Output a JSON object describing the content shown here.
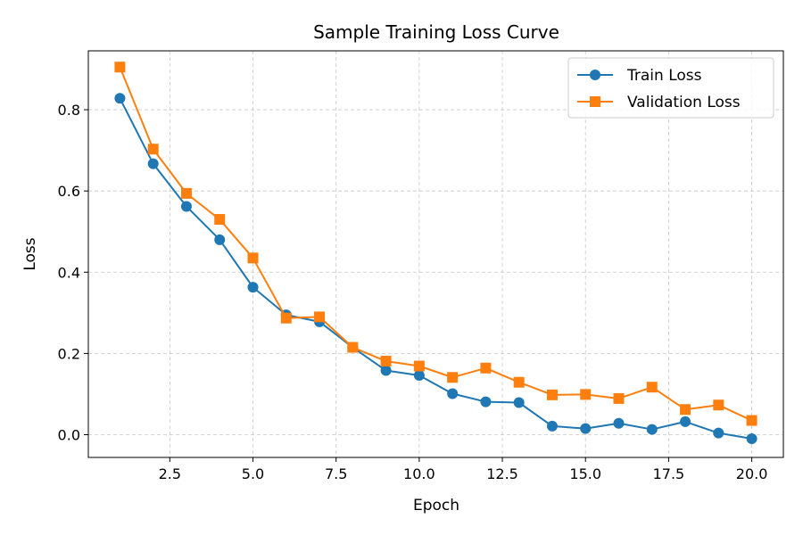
{
  "chart_data": {
    "type": "line",
    "title": "Sample Training Loss Curve",
    "xlabel": "Epoch",
    "ylabel": "Loss",
    "xlim": [
      0.05,
      20.95
    ],
    "ylim": [
      -0.056,
      0.945
    ],
    "xticks": [
      2.5,
      5.0,
      7.5,
      10.0,
      12.5,
      15.0,
      17.5,
      20.0
    ],
    "xtick_labels": [
      "2.5",
      "5.0",
      "7.5",
      "10.0",
      "12.5",
      "15.0",
      "17.5",
      "20.0"
    ],
    "yticks": [
      0.0,
      0.2,
      0.4,
      0.6,
      0.8
    ],
    "ytick_labels": [
      "0.0",
      "0.2",
      "0.4",
      "0.6",
      "0.8"
    ],
    "grid": true,
    "legend_position": "top-right",
    "x": [
      1,
      2,
      3,
      4,
      5,
      6,
      7,
      8,
      9,
      10,
      11,
      12,
      13,
      14,
      15,
      16,
      17,
      18,
      19,
      20
    ],
    "series": [
      {
        "name": "Train Loss",
        "color": "#1f77b4",
        "marker": "circle",
        "values": [
          0.828,
          0.667,
          0.562,
          0.48,
          0.363,
          0.295,
          0.278,
          0.215,
          0.158,
          0.146,
          0.101,
          0.081,
          0.079,
          0.021,
          0.015,
          0.028,
          0.013,
          0.032,
          0.004,
          -0.01
        ]
      },
      {
        "name": "Validation Loss",
        "color": "#ff7f0e",
        "marker": "square",
        "values": [
          0.905,
          0.703,
          0.594,
          0.53,
          0.435,
          0.287,
          0.29,
          0.215,
          0.181,
          0.169,
          0.141,
          0.164,
          0.129,
          0.098,
          0.099,
          0.089,
          0.117,
          0.062,
          0.073,
          0.035
        ]
      }
    ]
  }
}
